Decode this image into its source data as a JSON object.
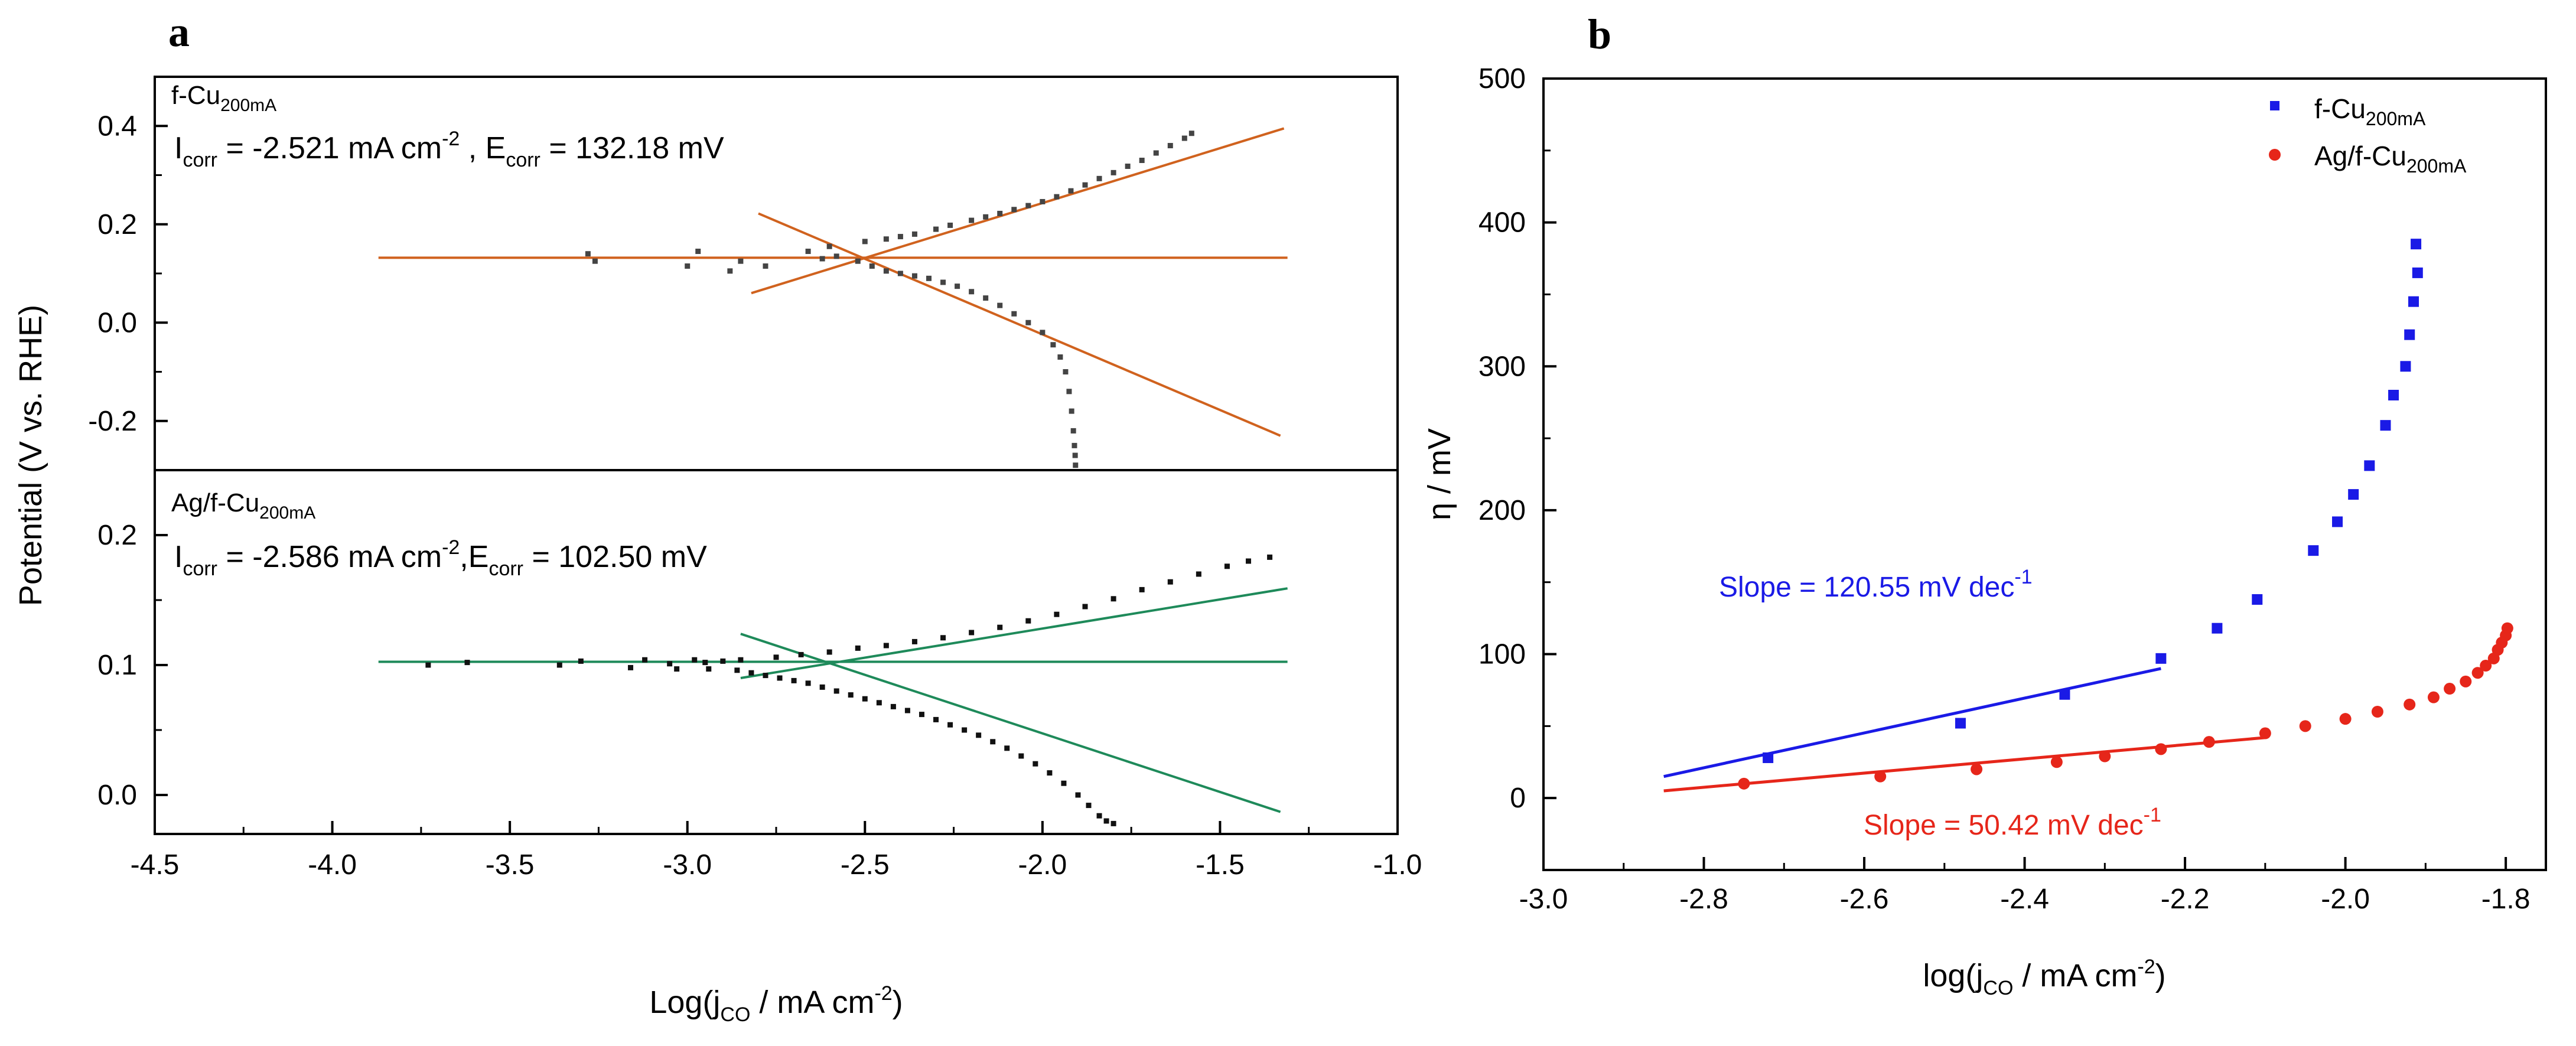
{
  "panel_labels": [
    "a",
    "b"
  ],
  "chart_data": [
    {
      "id": "a",
      "type": "scatter",
      "title": "",
      "xlabel_parts": [
        "Log(j",
        "CO",
        " / mA cm",
        "-2",
        ")"
      ],
      "ylabel": "Potential (V vs. RHE)",
      "xlim": [
        -4.5,
        -1.0
      ],
      "xticks": [
        -4.5,
        -4.0,
        -3.5,
        -3.0,
        -2.5,
        -2.0,
        -1.5,
        -1.0
      ],
      "xtick_labels": [
        "-4.5",
        "-4.0",
        "-3.5",
        "-3.0",
        "-2.5",
        "-2.0",
        "-1.5",
        "-1.0"
      ],
      "subplots": [
        {
          "name": "f-Cu",
          "sample_label_parts": [
            "f-Cu",
            "200mA"
          ],
          "annotation_parts": [
            "I",
            "corr",
            " = -2.521 mA cm",
            "-2",
            " , E",
            "corr",
            " = 132.18 mV"
          ],
          "ylim": [
            -0.3,
            0.5
          ],
          "yticks": [
            -0.2,
            0.0,
            0.2,
            0.4
          ],
          "ytick_labels": [
            "-0.2",
            "0.0",
            "0.2",
            "0.4"
          ],
          "marker_color": "#444444",
          "fit_color": "#d0621e",
          "cathodic": [
            [
              -3.28,
              0.14
            ],
            [
              -3.26,
              0.125
            ],
            [
              -3.0,
              0.115
            ],
            [
              -2.97,
              0.145
            ],
            [
              -2.88,
              0.105
            ],
            [
              -2.85,
              0.125
            ],
            [
              -2.78,
              0.115
            ],
            [
              -2.62,
              0.13
            ],
            [
              -2.58,
              0.135
            ],
            [
              -2.52,
              0.125
            ],
            [
              -2.48,
              0.115
            ],
            [
              -2.44,
              0.105
            ],
            [
              -2.4,
              0.1
            ],
            [
              -2.36,
              0.095
            ],
            [
              -2.32,
              0.09
            ],
            [
              -2.28,
              0.082
            ],
            [
              -2.24,
              0.074
            ],
            [
              -2.2,
              0.063
            ],
            [
              -2.16,
              0.05
            ],
            [
              -2.12,
              0.035
            ],
            [
              -2.08,
              0.018
            ],
            [
              -2.04,
              0.0
            ],
            [
              -2.0,
              -0.02
            ],
            [
              -1.97,
              -0.045
            ],
            [
              -1.95,
              -0.07
            ],
            [
              -1.935,
              -0.1
            ],
            [
              -1.925,
              -0.14
            ],
            [
              -1.918,
              -0.18
            ],
            [
              -1.913,
              -0.22
            ],
            [
              -1.91,
              -0.25
            ],
            [
              -1.908,
              -0.27
            ],
            [
              -1.907,
              -0.29
            ]
          ],
          "anodic": [
            [
              -2.66,
              0.145
            ],
            [
              -2.6,
              0.155
            ],
            [
              -2.5,
              0.165
            ],
            [
              -2.44,
              0.17
            ],
            [
              -2.4,
              0.175
            ],
            [
              -2.36,
              0.18
            ],
            [
              -2.3,
              0.19
            ],
            [
              -2.26,
              0.198
            ],
            [
              -2.2,
              0.208
            ],
            [
              -2.16,
              0.215
            ],
            [
              -2.12,
              0.222
            ],
            [
              -2.08,
              0.23
            ],
            [
              -2.04,
              0.238
            ],
            [
              -2.0,
              0.246
            ],
            [
              -1.96,
              0.256
            ],
            [
              -1.92,
              0.268
            ],
            [
              -1.88,
              0.28
            ],
            [
              -1.84,
              0.293
            ],
            [
              -1.8,
              0.305
            ],
            [
              -1.76,
              0.318
            ],
            [
              -1.72,
              0.33
            ],
            [
              -1.68,
              0.345
            ],
            [
              -1.64,
              0.36
            ],
            [
              -1.6,
              0.375
            ],
            [
              -1.58,
              0.385
            ]
          ],
          "fit_lines": [
            [
              [
                -3.87,
                0.132
              ],
              [
                -1.31,
                0.132
              ]
            ],
            [
              [
                -2.82,
                0.06
              ],
              [
                -1.32,
                0.395
              ]
            ],
            [
              [
                -2.8,
                0.222
              ],
              [
                -1.33,
                -0.23
              ]
            ]
          ]
        },
        {
          "name": "Ag/f-Cu",
          "sample_label_parts": [
            "Ag/f-Cu",
            "200mA"
          ],
          "annotation_parts": [
            "I",
            "corr",
            " = -2.586 mA cm",
            "-2",
            ",E",
            "corr",
            " = 102.50 mV"
          ],
          "ylim": [
            -0.03,
            0.25
          ],
          "yticks": [
            0.0,
            0.1,
            0.2
          ],
          "ytick_labels": [
            "0.0",
            "0.1",
            "0.2"
          ],
          "marker_color": "#111111",
          "fit_color": "#1e8a5a",
          "cathodic": [
            [
              -3.73,
              0.1
            ],
            [
              -3.62,
              0.102
            ],
            [
              -3.36,
              0.1
            ],
            [
              -3.3,
              0.103
            ],
            [
              -3.16,
              0.098
            ],
            [
              -3.12,
              0.104
            ],
            [
              -3.03,
              0.097
            ],
            [
              -2.98,
              0.104
            ],
            [
              -2.94,
              0.097
            ],
            [
              -2.9,
              0.103
            ],
            [
              -2.86,
              0.096
            ],
            [
              -2.82,
              0.094
            ],
            [
              -2.78,
              0.092
            ],
            [
              -2.74,
              0.09
            ],
            [
              -2.7,
              0.088
            ],
            [
              -2.66,
              0.086
            ],
            [
              -2.62,
              0.083
            ],
            [
              -2.58,
              0.08
            ],
            [
              -2.54,
              0.077
            ],
            [
              -2.5,
              0.074
            ],
            [
              -2.46,
              0.071
            ],
            [
              -2.42,
              0.068
            ],
            [
              -2.38,
              0.065
            ],
            [
              -2.34,
              0.062
            ],
            [
              -2.3,
              0.058
            ],
            [
              -2.26,
              0.054
            ],
            [
              -2.22,
              0.05
            ],
            [
              -2.18,
              0.046
            ],
            [
              -2.14,
              0.041
            ],
            [
              -2.1,
              0.036
            ],
            [
              -2.06,
              0.03
            ],
            [
              -2.02,
              0.024
            ],
            [
              -1.98,
              0.017
            ],
            [
              -1.94,
              0.009
            ],
            [
              -1.9,
              0.0
            ],
            [
              -1.87,
              -0.008
            ],
            [
              -1.84,
              -0.016
            ],
            [
              -1.82,
              -0.02
            ],
            [
              -1.8,
              -0.022
            ]
          ],
          "anodic": [
            [
              -3.05,
              0.101
            ],
            [
              -2.95,
              0.102
            ],
            [
              -2.85,
              0.104
            ],
            [
              -2.75,
              0.106
            ],
            [
              -2.68,
              0.108
            ],
            [
              -2.6,
              0.11
            ],
            [
              -2.52,
              0.113
            ],
            [
              -2.44,
              0.115
            ],
            [
              -2.36,
              0.118
            ],
            [
              -2.28,
              0.121
            ],
            [
              -2.2,
              0.125
            ],
            [
              -2.12,
              0.129
            ],
            [
              -2.04,
              0.134
            ],
            [
              -1.96,
              0.139
            ],
            [
              -1.88,
              0.145
            ],
            [
              -1.8,
              0.151
            ],
            [
              -1.72,
              0.158
            ],
            [
              -1.64,
              0.164
            ],
            [
              -1.56,
              0.17
            ],
            [
              -1.48,
              0.176
            ],
            [
              -1.42,
              0.18
            ],
            [
              -1.36,
              0.183
            ]
          ],
          "fit_lines": [
            [
              [
                -3.87,
                0.1025
              ],
              [
                -1.31,
                0.1025
              ]
            ],
            [
              [
                -2.85,
                0.09
              ],
              [
                -1.31,
                0.159
              ]
            ],
            [
              [
                -2.85,
                0.124
              ],
              [
                -1.33,
                -0.013
              ]
            ]
          ]
        }
      ]
    },
    {
      "id": "b",
      "type": "scatter",
      "title": "",
      "xlabel_parts": [
        "log(j",
        "CO",
        " / mA cm",
        "-2",
        ")"
      ],
      "ylabel": "η / mV",
      "xlim": [
        -3.0,
        -1.75
      ],
      "ylim": [
        -50,
        500
      ],
      "xticks": [
        -3.0,
        -2.8,
        -2.6,
        -2.4,
        -2.2,
        -2.0,
        -1.8
      ],
      "xtick_labels": [
        "-3.0",
        "-2.8",
        "-2.6",
        "-2.4",
        "-2.2",
        "-2.0",
        "-1.8"
      ],
      "yticks": [
        0,
        100,
        200,
        300,
        400,
        500
      ],
      "ytick_labels": [
        "0",
        "100",
        "200",
        "300",
        "400",
        "500"
      ],
      "legend_position": "top-right",
      "series": [
        {
          "name_parts": [
            "f-Cu",
            "200mA"
          ],
          "marker": "square",
          "color": "#1a1ae6",
          "points": [
            [
              -2.72,
              28
            ],
            [
              -2.48,
              52
            ],
            [
              -2.35,
              72
            ],
            [
              -2.23,
              97
            ],
            [
              -2.16,
              118
            ],
            [
              -2.11,
              138
            ],
            [
              -2.04,
              172
            ],
            [
              -2.01,
              192
            ],
            [
              -1.99,
              211
            ],
            [
              -1.97,
              231
            ],
            [
              -1.95,
              259
            ],
            [
              -1.94,
              280
            ],
            [
              -1.925,
              300
            ],
            [
              -1.92,
              322
            ],
            [
              -1.915,
              345
            ],
            [
              -1.91,
              365
            ],
            [
              -1.912,
              385
            ]
          ],
          "fit_line": [
            [
              -2.85,
              15
            ],
            [
              -2.23,
              90
            ]
          ],
          "slope_label_parts": [
            "Slope = 120.55 mV dec",
            "-1"
          ]
        },
        {
          "name_parts": [
            "Ag/f-Cu",
            "200mA"
          ],
          "marker": "circle",
          "color": "#e6261a",
          "points": [
            [
              -2.75,
              10
            ],
            [
              -2.58,
              15
            ],
            [
              -2.46,
              20
            ],
            [
              -2.36,
              25
            ],
            [
              -2.3,
              29
            ],
            [
              -2.23,
              34
            ],
            [
              -2.17,
              39
            ],
            [
              -2.1,
              45
            ],
            [
              -2.05,
              50
            ],
            [
              -2.0,
              55
            ],
            [
              -1.96,
              60
            ],
            [
              -1.92,
              65
            ],
            [
              -1.89,
              70
            ],
            [
              -1.87,
              76
            ],
            [
              -1.85,
              81
            ],
            [
              -1.835,
              87
            ],
            [
              -1.825,
              92
            ],
            [
              -1.815,
              97
            ],
            [
              -1.81,
              103
            ],
            [
              -1.805,
              108
            ],
            [
              -1.8,
              113
            ],
            [
              -1.798,
              118
            ]
          ],
          "fit_line": [
            [
              -2.85,
              5
            ],
            [
              -2.1,
              42
            ]
          ],
          "slope_label_parts": [
            "Slope = 50.42 mV dec",
            "-1"
          ]
        }
      ]
    }
  ]
}
